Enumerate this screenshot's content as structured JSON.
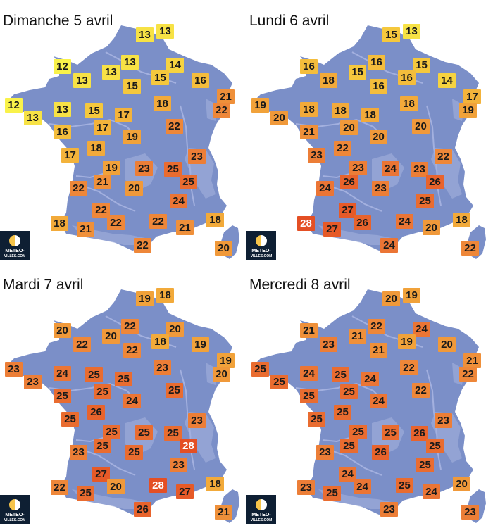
{
  "colors": {
    "land": "#7b8fc8",
    "relief": "#a7b4df",
    "river": "#a3b0df",
    "t12": "#f9f24a",
    "t13": "#f7e245",
    "t14": "#f6d340",
    "t15": "#f5c83d",
    "t16": "#f4bd3c",
    "t17": "#f3b33b",
    "t18": "#f2aa3a",
    "t19": "#f1a23a",
    "t20": "#f0993a",
    "t21": "#ef903a",
    "t22": "#ee8739",
    "t23": "#ec7e37",
    "t24": "#eb7535",
    "t25": "#e96c30",
    "t26": "#e8632c",
    "t27": "#e65a28",
    "t28": "#e44f24"
  },
  "logo": {
    "icon": "sun-moon-icon",
    "line1": "METEO-",
    "line2": "VILLES.COM"
  },
  "panels": [
    {
      "title": "Dimanche 5 avril",
      "temps": [
        13,
        13,
        12,
        13,
        13,
        13,
        14,
        15,
        15,
        16,
        12,
        13,
        13,
        15,
        17,
        18,
        21,
        22,
        16,
        17,
        19,
        22,
        17,
        18,
        23,
        19,
        23,
        25,
        25,
        21,
        22,
        20,
        24,
        22,
        22,
        18,
        21,
        22,
        21,
        18,
        20,
        22
      ]
    },
    {
      "title": "Lundi 6 avril",
      "temps": [
        15,
        13,
        16,
        18,
        15,
        16,
        15,
        16,
        16,
        14,
        19,
        20,
        18,
        18,
        18,
        18,
        17,
        19,
        21,
        20,
        20,
        20,
        23,
        22,
        22,
        23,
        24,
        23,
        26,
        26,
        24,
        23,
        25,
        27,
        26,
        28,
        27,
        24,
        20,
        18,
        22,
        24
      ]
    },
    {
      "title": "Mardi 7 avril",
      "temps": [
        19,
        18,
        20,
        22,
        20,
        22,
        20,
        18,
        22,
        19,
        23,
        23,
        24,
        25,
        25,
        23,
        19,
        20,
        25,
        25,
        24,
        25,
        25,
        26,
        23,
        25,
        25,
        25,
        28,
        25,
        23,
        25,
        23,
        27,
        20,
        22,
        25,
        28,
        27,
        18,
        21,
        26
      ]
    },
    {
      "title": "Mercredi 8 avril",
      "temps": [
        20,
        19,
        21,
        23,
        21,
        22,
        24,
        19,
        21,
        20,
        25,
        25,
        24,
        25,
        24,
        22,
        21,
        22,
        25,
        25,
        24,
        22,
        25,
        25,
        23,
        25,
        25,
        26,
        25,
        25,
        23,
        26,
        25,
        24,
        24,
        23,
        25,
        25,
        24,
        20,
        23,
        23
      ]
    }
  ]
}
